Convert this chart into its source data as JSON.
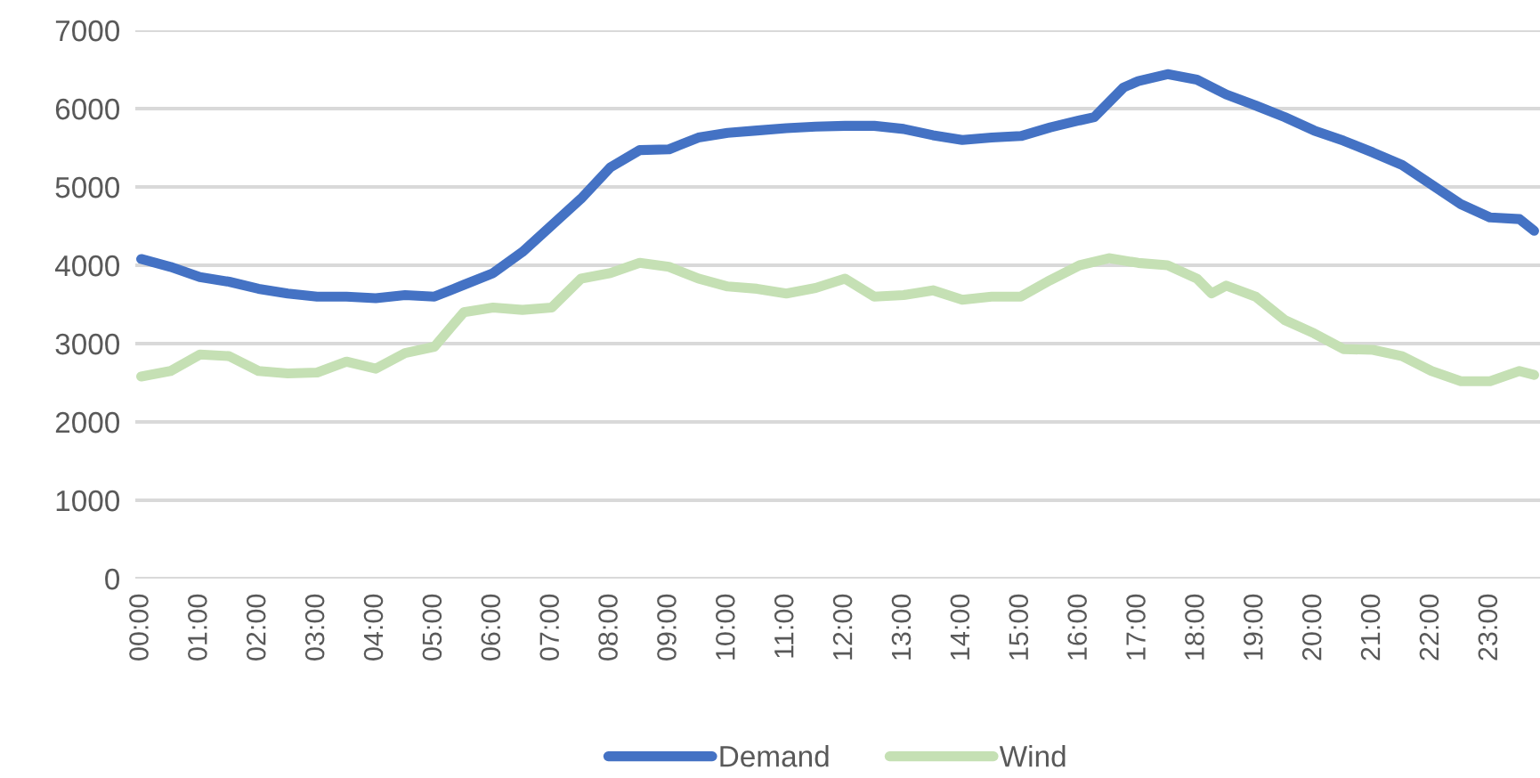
{
  "chart_data": {
    "type": "line",
    "legend": "bottom",
    "grid": "y",
    "marker": "none",
    "line_style": "solid",
    "xlim": [
      -0.1,
      23.85
    ],
    "xticks": [
      {
        "value": 0,
        "label": "00:00"
      },
      {
        "value": 1,
        "label": "01:00"
      },
      {
        "value": 2,
        "label": "02:00"
      },
      {
        "value": 3,
        "label": "03:00"
      },
      {
        "value": 4,
        "label": "04:00"
      },
      {
        "value": 5,
        "label": "05:00"
      },
      {
        "value": 6,
        "label": "06:00"
      },
      {
        "value": 7,
        "label": "07:00"
      },
      {
        "value": 8,
        "label": "08:00"
      },
      {
        "value": 9,
        "label": "09:00"
      },
      {
        "value": 10,
        "label": "10:00"
      },
      {
        "value": 11,
        "label": "11:00"
      },
      {
        "value": 12,
        "label": "12:00"
      },
      {
        "value": 13,
        "label": "13:00"
      },
      {
        "value": 14,
        "label": "14:00"
      },
      {
        "value": 15,
        "label": "15:00"
      },
      {
        "value": 16,
        "label": "16:00"
      },
      {
        "value": 17,
        "label": "17:00"
      },
      {
        "value": 18,
        "label": "18:00"
      },
      {
        "value": 19,
        "label": "19:00"
      },
      {
        "value": 20,
        "label": "20:00"
      },
      {
        "value": 21,
        "label": "21:00"
      },
      {
        "value": 22,
        "label": "22:00"
      },
      {
        "value": 23,
        "label": "23:00"
      }
    ],
    "ylim": [
      0,
      7000
    ],
    "yticks": [
      0,
      1000,
      2000,
      3000,
      4000,
      5000,
      6000,
      7000
    ],
    "series": [
      {
        "name": "Demand",
        "color": "#4472c4",
        "x": [
          0,
          0.5,
          1,
          1.5,
          2,
          2.5,
          3,
          3.5,
          4,
          4.5,
          5,
          5.5,
          6,
          6.5,
          7,
          7.5,
          8,
          8.5,
          9,
          9.5,
          10,
          10.5,
          11,
          11.5,
          12,
          12.5,
          13,
          13.5,
          14,
          14.5,
          15,
          15.5,
          16,
          16.25,
          16.75,
          17,
          17.5,
          18,
          18.5,
          19,
          19.5,
          20,
          20.5,
          21,
          21.5,
          22,
          22.5,
          23,
          23.5,
          23.75
        ],
        "values": [
          4080,
          3980,
          3850,
          3790,
          3700,
          3640,
          3600,
          3600,
          3580,
          3620,
          3600,
          3750,
          3900,
          4170,
          4510,
          4850,
          5250,
          5470,
          5480,
          5630,
          5690,
          5720,
          5750,
          5770,
          5780,
          5780,
          5740,
          5660,
          5600,
          5630,
          5650,
          5760,
          5850,
          5890,
          6270,
          6350,
          6440,
          6370,
          6180,
          6040,
          5890,
          5720,
          5590,
          5440,
          5280,
          5030,
          4780,
          4610,
          4590,
          4440
        ]
      },
      {
        "name": "Wind",
        "color": "#c5e0b4",
        "x": [
          0,
          0.5,
          1,
          1.5,
          2,
          2.5,
          3,
          3.5,
          4,
          4.5,
          5,
          5.5,
          6,
          6.5,
          7,
          7.5,
          8,
          8.5,
          9,
          9.5,
          10,
          10.5,
          11,
          11.5,
          12,
          12.5,
          13,
          13.5,
          14,
          14.5,
          15,
          15.5,
          16,
          16.5,
          17,
          17.5,
          18,
          18.25,
          18.5,
          19,
          19.5,
          20,
          20.5,
          21,
          21.5,
          22,
          22.5,
          23,
          23.5,
          23.75
        ],
        "values": [
          2580,
          2650,
          2860,
          2840,
          2650,
          2620,
          2630,
          2770,
          2680,
          2880,
          2960,
          3400,
          3460,
          3430,
          3460,
          3830,
          3900,
          4030,
          3980,
          3830,
          3730,
          3700,
          3640,
          3710,
          3830,
          3600,
          3620,
          3680,
          3560,
          3600,
          3600,
          3810,
          4000,
          4090,
          4030,
          4000,
          3830,
          3640,
          3740,
          3600,
          3300,
          3130,
          2930,
          2920,
          2840,
          2650,
          2520,
          2520,
          2650,
          2600
        ]
      }
    ]
  }
}
